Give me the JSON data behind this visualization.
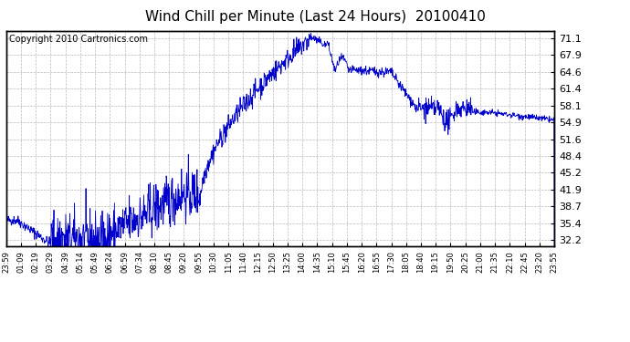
{
  "title": "Wind Chill per Minute (Last 24 Hours)  20100410",
  "copyright": "Copyright 2010 Cartronics.com",
  "ylabel_right": [
    "71.1",
    "67.9",
    "64.6",
    "61.4",
    "58.1",
    "54.9",
    "51.6",
    "48.4",
    "45.2",
    "41.9",
    "38.7",
    "35.4",
    "32.2"
  ],
  "yticks": [
    71.1,
    67.9,
    64.6,
    61.4,
    58.1,
    54.9,
    51.6,
    48.4,
    45.2,
    41.9,
    38.7,
    35.4,
    32.2
  ],
  "ylim": [
    31.0,
    72.5
  ],
  "xtick_labels": [
    "23:59",
    "01:09",
    "02:19",
    "03:29",
    "04:39",
    "05:14",
    "05:49",
    "06:24",
    "06:59",
    "07:34",
    "08:10",
    "08:45",
    "09:20",
    "09:55",
    "10:30",
    "11:05",
    "11:40",
    "12:15",
    "12:50",
    "13:25",
    "14:00",
    "14:35",
    "15:10",
    "15:45",
    "16:20",
    "16:55",
    "17:30",
    "18:05",
    "18:40",
    "19:15",
    "19:50",
    "20:25",
    "21:00",
    "21:35",
    "22:10",
    "22:45",
    "23:20",
    "23:55"
  ],
  "line_color": "#0000cc",
  "background_color": "#ffffff",
  "grid_color": "#aaaaaa",
  "title_fontsize": 11,
  "copyright_fontsize": 7
}
